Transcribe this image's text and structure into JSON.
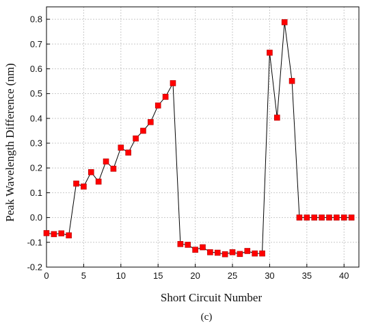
{
  "chart_data": {
    "type": "line",
    "title": "",
    "xlabel": "Short Circuit Number",
    "ylabel": "Peak Wavelength Difference (nm)",
    "caption": "(c)",
    "xlim": [
      0,
      42
    ],
    "ylim": [
      -0.2,
      0.85
    ],
    "xticks": [
      0,
      5,
      10,
      15,
      20,
      25,
      30,
      35,
      40
    ],
    "yticks": [
      -0.2,
      -0.1,
      0.0,
      0.1,
      0.2,
      0.3,
      0.4,
      0.5,
      0.6,
      0.7,
      0.8
    ],
    "xtick_labels": [
      "0",
      "5",
      "10",
      "15",
      "20",
      "25",
      "30",
      "35",
      "40"
    ],
    "ytick_labels": [
      "-0.2",
      "-0.1",
      "0.0",
      "0.1",
      "0.2",
      "0.3",
      "0.4",
      "0.5",
      "0.6",
      "0.7",
      "0.8"
    ],
    "grid": true,
    "color": "#ff0000",
    "marker": "square",
    "x": [
      0,
      1,
      2,
      3,
      4,
      5,
      6,
      7,
      8,
      9,
      10,
      11,
      12,
      13,
      14,
      15,
      16,
      17,
      18,
      19,
      20,
      21,
      22,
      23,
      24,
      25,
      26,
      27,
      28,
      29,
      30,
      31,
      32,
      33,
      34,
      35,
      36,
      37,
      38,
      39,
      40,
      41
    ],
    "y": [
      -0.063,
      -0.067,
      -0.064,
      -0.072,
      0.137,
      0.125,
      0.183,
      0.145,
      0.226,
      0.197,
      0.282,
      0.262,
      0.319,
      0.35,
      0.385,
      0.452,
      0.487,
      0.542,
      -0.107,
      -0.11,
      -0.13,
      -0.12,
      -0.14,
      -0.142,
      -0.148,
      -0.14,
      -0.147,
      -0.135,
      -0.145,
      -0.145,
      0.665,
      0.403,
      0.788,
      0.551,
      0.0,
      0.0,
      0.0,
      0.0,
      0.0,
      0.0,
      0.0,
      0.0
    ]
  }
}
